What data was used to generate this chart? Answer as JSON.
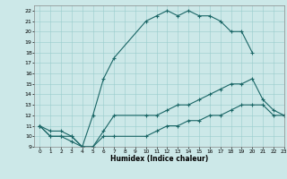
{
  "xlabel": "Humidex (Indice chaleur)",
  "xlim": [
    -0.5,
    23
  ],
  "ylim": [
    9,
    22.5
  ],
  "xticks": [
    0,
    1,
    2,
    3,
    4,
    5,
    6,
    7,
    8,
    9,
    10,
    11,
    12,
    13,
    14,
    15,
    16,
    17,
    18,
    19,
    20,
    21,
    22,
    23
  ],
  "yticks": [
    9,
    10,
    11,
    12,
    13,
    14,
    15,
    16,
    17,
    18,
    19,
    20,
    21,
    22
  ],
  "bg_color": "#cce8e8",
  "line_color": "#1a6666",
  "curve1_x": [
    0,
    1,
    2,
    3,
    4,
    5,
    6,
    7,
    10,
    11,
    12,
    13,
    14,
    15,
    16,
    17,
    18,
    19,
    20
  ],
  "curve1_y": [
    11,
    10,
    10,
    9.5,
    9,
    12,
    15.5,
    17.5,
    21,
    21.5,
    22,
    21.5,
    22,
    21.5,
    21.5,
    21,
    20,
    20,
    18
  ],
  "curve2_x": [
    0,
    1,
    2,
    3,
    4,
    5,
    6,
    7,
    10,
    11,
    12,
    13,
    14,
    15,
    16,
    17,
    18,
    19,
    20,
    21,
    22,
    23
  ],
  "curve2_y": [
    11,
    10.5,
    10.5,
    10,
    9,
    9,
    10.5,
    12,
    12,
    12,
    12.5,
    13,
    13,
    13.5,
    14,
    14.5,
    15,
    15,
    15.5,
    13.5,
    12.5,
    12
  ],
  "curve3_x": [
    0,
    1,
    2,
    3,
    4,
    5,
    6,
    7,
    10,
    11,
    12,
    13,
    14,
    15,
    16,
    17,
    18,
    19,
    20,
    21,
    22,
    23
  ],
  "curve3_y": [
    11,
    10,
    10,
    10,
    9,
    9,
    10,
    10,
    10,
    10.5,
    11,
    11,
    11.5,
    11.5,
    12,
    12,
    12.5,
    13,
    13,
    13,
    12,
    12
  ]
}
